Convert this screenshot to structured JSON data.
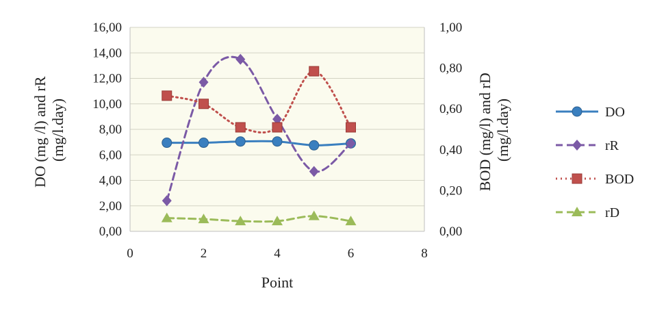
{
  "chart_data": {
    "type": "scatter",
    "xlabel": "Point",
    "ylabel_left": [
      "DO (mg /l) and rR",
      "(mg/l.day)"
    ],
    "ylabel_right": [
      "BOD (mg/l) and rD",
      "(mg/l.day)"
    ],
    "xlim": [
      0,
      8
    ],
    "ylim_left": [
      0,
      16
    ],
    "ylim_right": [
      0,
      1
    ],
    "x_ticks": [
      "0",
      "2",
      "4",
      "6",
      "8"
    ],
    "y_ticks_left": [
      "0,00",
      "2,00",
      "4,00",
      "6,00",
      "8,00",
      "10,00",
      "12,00",
      "14,00",
      "16,00"
    ],
    "y_ticks_right": [
      "0,00",
      "0,20",
      "0,40",
      "0,60",
      "0,80",
      "1,00"
    ],
    "grid": "horizontal",
    "legend_position": "right",
    "series": [
      {
        "name": "DO",
        "axis": "left",
        "line": "solid",
        "marker": "circle",
        "color": "#3a7fbf",
        "x": [
          1,
          2,
          3,
          4,
          5,
          6
        ],
        "y": [
          6.95,
          6.95,
          7.05,
          7.05,
          6.75,
          6.9
        ]
      },
      {
        "name": "rR",
        "axis": "left",
        "line": "dashed",
        "marker": "diamond",
        "color": "#7b5aa6",
        "x": [
          1,
          2,
          3,
          4,
          5,
          6
        ],
        "y": [
          2.4,
          11.7,
          13.5,
          8.8,
          4.7,
          6.9
        ]
      },
      {
        "name": "BOD",
        "axis": "right",
        "line": "dotted",
        "marker": "square",
        "color": "#c0504d",
        "x": [
          1,
          2,
          3,
          4,
          5,
          6
        ],
        "y": [
          0.665,
          0.625,
          0.51,
          0.51,
          0.785,
          0.51
        ]
      },
      {
        "name": "rD",
        "axis": "right",
        "line": "dashed",
        "marker": "triangle",
        "color": "#9bbb59",
        "x": [
          1,
          2,
          3,
          4,
          5,
          6
        ],
        "y": [
          0.065,
          0.06,
          0.05,
          0.05,
          0.075,
          0.05
        ]
      }
    ]
  }
}
